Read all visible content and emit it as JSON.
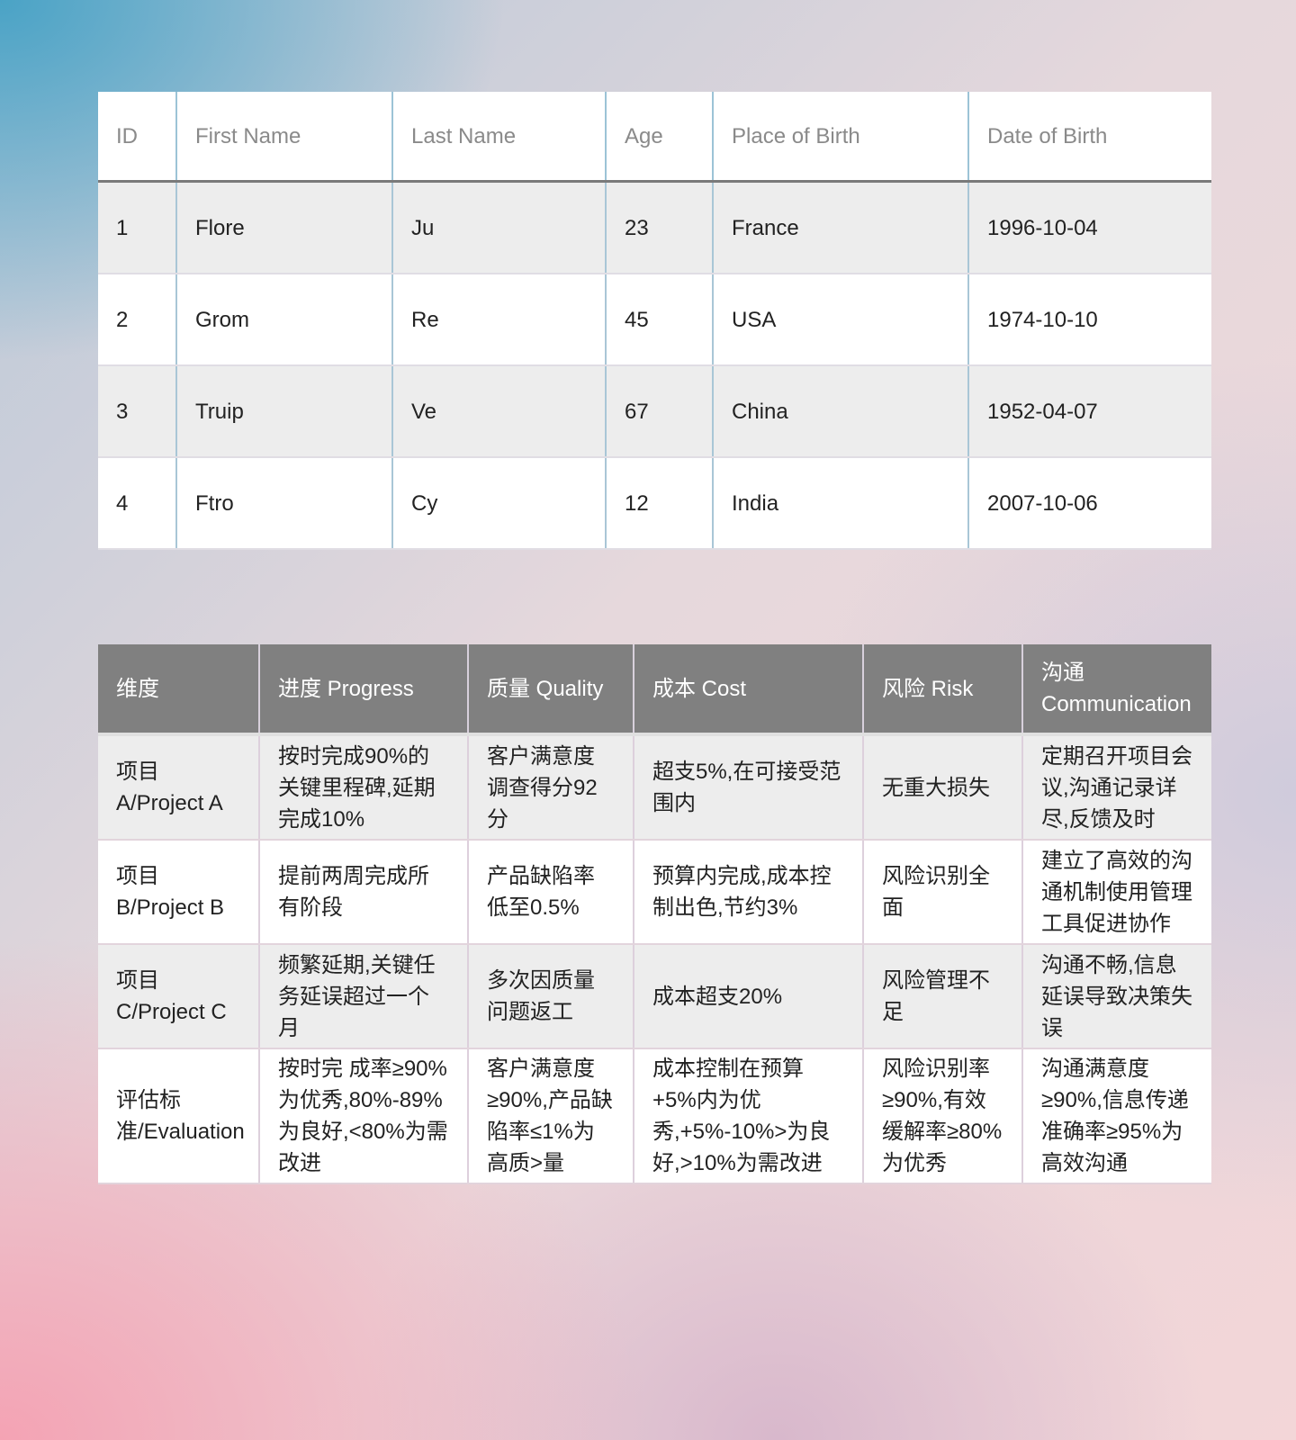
{
  "people_table": {
    "headers": [
      "ID",
      "First Name",
      "Last Name",
      "Age",
      "Place of Birth",
      "Date of Birth"
    ],
    "rows": [
      [
        "1",
        "Flore",
        "Ju",
        "23",
        "France",
        "1996-10-04"
      ],
      [
        "2",
        "Grom",
        "Re",
        "45",
        "USA",
        "1974-10-10"
      ],
      [
        "3",
        "Truip",
        "Ve",
        "67",
        "China",
        "1952-04-07"
      ],
      [
        "4",
        "Ftro",
        "Cy",
        "12",
        "India",
        "2007-10-06"
      ]
    ]
  },
  "project_table": {
    "headers": [
      "维度",
      "进度 Progress",
      "质量 Quality",
      "成本 Cost",
      "风险 Risk",
      "沟通 Communication"
    ],
    "rows": [
      [
        "项目A/Project A",
        "按时完成90%的关键里程碑,延期完成10%",
        "客户满意度调查得分92分",
        "超支5%,在可接受范围内",
        "无重大损失",
        "定期召开项目会议,沟通记录详尽,反馈及时"
      ],
      [
        "项目B/Project B",
        "提前两周完成所有阶段",
        "产品缺陷率低至0.5%",
        "预算内完成,成本控制出色,节约3%",
        "风险识别全面",
        "建立了高效的沟通机制使用管理工具促进协作"
      ],
      [
        "项目C/Project C",
        "频繁延期,关键任务延误超过一个月",
        "多次因质量问题返工",
        "成本超支20%",
        "风险管理不足",
        "沟通不畅,信息延误导致决策失误"
      ],
      [
        "评估标准/Evaluation",
        "按时完 成率≥90%为优秀,80%-89%为良好,<80%为需改进",
        "客户满意度≥90%,产品缺陷率≤1%为高质>量",
        "成本控制在预算+5%内为优秀,+5%-10%>为良好,>10%为需改进",
        "风险识别率≥90%,有效缓解率≥80%为优秀",
        "沟通满意度≥90%,信息传递准确率≥95%为高效沟通"
      ]
    ]
  }
}
